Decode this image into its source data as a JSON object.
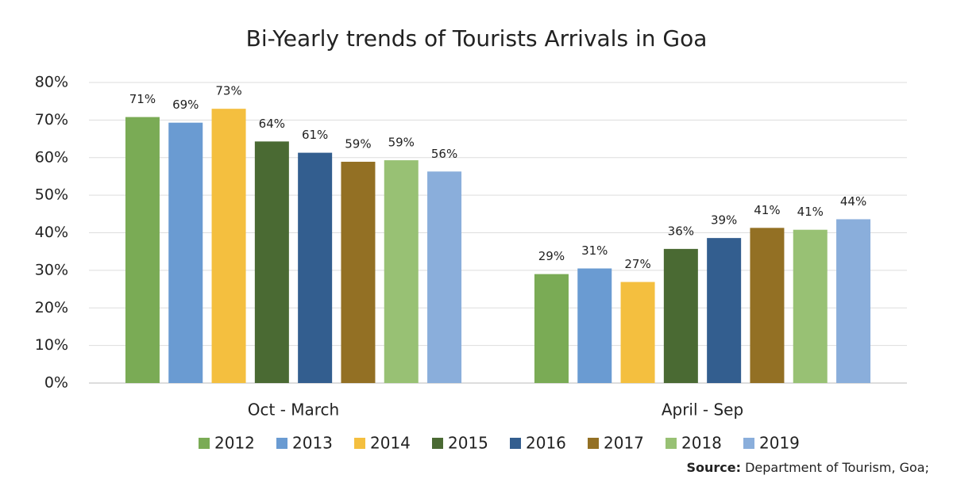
{
  "chart_data": {
    "type": "bar",
    "title": "Bi-Yearly trends of Tourists Arrivals in Goa",
    "categories": [
      "Oct - March",
      "April - Sep"
    ],
    "series": [
      {
        "name": "2012",
        "color": "#7aab55",
        "values": [
          70.8,
          29.0
        ],
        "value_labels": [
          "71%",
          "29%"
        ]
      },
      {
        "name": "2013",
        "color": "#6a9bd2",
        "values": [
          69.3,
          30.5
        ],
        "value_labels": [
          "69%",
          "31%"
        ]
      },
      {
        "name": "2014",
        "color": "#f4bf3f",
        "values": [
          73.0,
          26.9
        ],
        "value_labels": [
          "73%",
          "27%"
        ]
      },
      {
        "name": "2015",
        "color": "#4a6a33",
        "values": [
          64.3,
          35.7
        ],
        "value_labels": [
          "64%",
          "36%"
        ]
      },
      {
        "name": "2016",
        "color": "#335e8f",
        "values": [
          61.3,
          38.6
        ],
        "value_labels": [
          "61%",
          "39%"
        ]
      },
      {
        "name": "2017",
        "color": "#937024",
        "values": [
          58.9,
          41.3
        ],
        "value_labels": [
          "59%",
          "41%"
        ]
      },
      {
        "name": "2018",
        "color": "#98c174",
        "values": [
          59.3,
          40.8
        ],
        "value_labels": [
          "59%",
          "41%"
        ]
      },
      {
        "name": "2019",
        "color": "#8aaedb",
        "values": [
          56.3,
          43.6
        ],
        "value_labels": [
          "56%",
          "44%"
        ]
      }
    ],
    "ylim": [
      0,
      80
    ],
    "yticks": [
      {
        "value": 0,
        "label": "0%"
      },
      {
        "value": 10,
        "label": "10%"
      },
      {
        "value": 20,
        "label": "20%"
      },
      {
        "value": 30,
        "label": "30%"
      },
      {
        "value": 40,
        "label": "40%"
      },
      {
        "value": 50,
        "label": "50%"
      },
      {
        "value": 60,
        "label": "60%"
      },
      {
        "value": 70,
        "label": "70%"
      },
      {
        "value": 80,
        "label": "80%"
      }
    ],
    "grid": true,
    "legend": "bottom",
    "source_label": "Source:",
    "source_text": "Department of Tourism, Goa;"
  }
}
